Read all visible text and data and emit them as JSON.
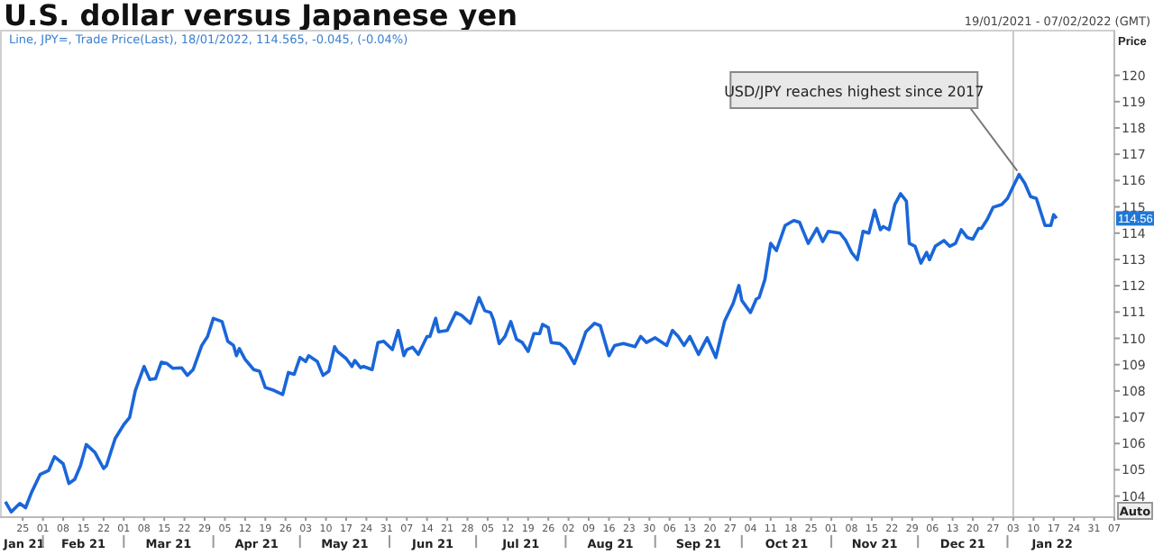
{
  "chart_data": {
    "type": "line",
    "title": "U.S. dollar versus Japanese yen",
    "subtitle": "Line, JPY=, Trade Price(Last), 18/01/2022, 114.565, -0.045, (-0.04%)",
    "ylabel": "Price",
    "xlim": [
      "2021-01-19",
      "2022-02-07"
    ],
    "ylim": [
      103.2,
      121.7
    ],
    "yticks": [
      104,
      105,
      106,
      107,
      108,
      109,
      110,
      111,
      112,
      113,
      114,
      115,
      116,
      117,
      118,
      119,
      120
    ],
    "xticks": [
      {
        "value": "2021-01-25",
        "label": "25"
      },
      {
        "value": "2021-02-01",
        "label": "01"
      },
      {
        "value": "2021-02-08",
        "label": "08"
      },
      {
        "value": "2021-02-15",
        "label": "15"
      },
      {
        "value": "2021-02-22",
        "label": "22"
      },
      {
        "value": "2021-03-01",
        "label": "01"
      },
      {
        "value": "2021-03-08",
        "label": "08"
      },
      {
        "value": "2021-03-15",
        "label": "15"
      },
      {
        "value": "2021-03-22",
        "label": "22"
      },
      {
        "value": "2021-03-29",
        "label": "29"
      },
      {
        "value": "2021-04-05",
        "label": "05"
      },
      {
        "value": "2021-04-12",
        "label": "12"
      },
      {
        "value": "2021-04-19",
        "label": "19"
      },
      {
        "value": "2021-04-26",
        "label": "26"
      },
      {
        "value": "2021-05-03",
        "label": "03"
      },
      {
        "value": "2021-05-10",
        "label": "10"
      },
      {
        "value": "2021-05-17",
        "label": "17"
      },
      {
        "value": "2021-05-24",
        "label": "24"
      },
      {
        "value": "2021-05-31",
        "label": "31"
      },
      {
        "value": "2021-06-07",
        "label": "07"
      },
      {
        "value": "2021-06-14",
        "label": "14"
      },
      {
        "value": "2021-06-21",
        "label": "21"
      },
      {
        "value": "2021-06-28",
        "label": "28"
      },
      {
        "value": "2021-07-05",
        "label": "05"
      },
      {
        "value": "2021-07-12",
        "label": "12"
      },
      {
        "value": "2021-07-19",
        "label": "19"
      },
      {
        "value": "2021-07-26",
        "label": "26"
      },
      {
        "value": "2021-08-02",
        "label": "02"
      },
      {
        "value": "2021-08-09",
        "label": "09"
      },
      {
        "value": "2021-08-16",
        "label": "16"
      },
      {
        "value": "2021-08-23",
        "label": "23"
      },
      {
        "value": "2021-08-30",
        "label": "30"
      },
      {
        "value": "2021-09-06",
        "label": "06"
      },
      {
        "value": "2021-09-13",
        "label": "13"
      },
      {
        "value": "2021-09-20",
        "label": "20"
      },
      {
        "value": "2021-09-27",
        "label": "27"
      },
      {
        "value": "2021-10-04",
        "label": "04"
      },
      {
        "value": "2021-10-11",
        "label": "11"
      },
      {
        "value": "2021-10-18",
        "label": "18"
      },
      {
        "value": "2021-10-25",
        "label": "25"
      },
      {
        "value": "2021-11-01",
        "label": "01"
      },
      {
        "value": "2021-11-08",
        "label": "08"
      },
      {
        "value": "2021-11-15",
        "label": "15"
      },
      {
        "value": "2021-11-22",
        "label": "22"
      },
      {
        "value": "2021-11-29",
        "label": "29"
      },
      {
        "value": "2021-12-06",
        "label": "06"
      },
      {
        "value": "2021-12-13",
        "label": "13"
      },
      {
        "value": "2021-12-20",
        "label": "20"
      },
      {
        "value": "2021-12-27",
        "label": "27"
      },
      {
        "value": "2022-01-03",
        "label": "03"
      },
      {
        "value": "2022-01-10",
        "label": "10"
      },
      {
        "value": "2022-01-17",
        "label": "17"
      },
      {
        "value": "2022-01-24",
        "label": "24"
      },
      {
        "value": "2022-01-31",
        "label": "31"
      },
      {
        "value": "2022-02-07",
        "label": "07"
      }
    ],
    "grid": false,
    "ref_lines": [
      {
        "axis": "x",
        "value": "2022-01-03",
        "color": "#c8c8c8"
      }
    ],
    "annotations": [
      "19/01/2021 - 07/02/2022 (GMT)",
      "Auto",
      {
        "text": "USD/JPY reaches highest since 2017",
        "x": "2022-01-05",
        "y": 116.23
      },
      "114.56",
      "Jan 21",
      "Feb 21",
      "Mar 21",
      "Apr 21",
      "May 21",
      "Jun 21",
      "Jul 21",
      "Aug 21",
      "Sep 21",
      "Oct 21",
      "Nov 21",
      "Dec 21",
      "Jan 22"
    ],
    "series": [
      {
        "color": "#1a66d9",
        "x": [
          "2021-01-19",
          "2021-01-21",
          "2021-01-24",
          "2021-01-26",
          "2021-01-28",
          "2021-01-31",
          "2021-02-03",
          "2021-02-05",
          "2021-02-08",
          "2021-02-10",
          "2021-02-12",
          "2021-02-14",
          "2021-02-16",
          "2021-02-19",
          "2021-02-22",
          "2021-02-23",
          "2021-02-26",
          "2021-03-01",
          "2021-03-03",
          "2021-03-05",
          "2021-03-08",
          "2021-03-10",
          "2021-03-12",
          "2021-03-14",
          "2021-03-16",
          "2021-03-18",
          "2021-03-21",
          "2021-03-23",
          "2021-03-25",
          "2021-03-28",
          "2021-03-30",
          "2021-04-01",
          "2021-04-04",
          "2021-04-06",
          "2021-04-08",
          "2021-04-09",
          "2021-04-10",
          "2021-04-12",
          "2021-04-15",
          "2021-04-17",
          "2021-04-19",
          "2021-04-22",
          "2021-04-25",
          "2021-04-27",
          "2021-04-29",
          "2021-05-01",
          "2021-05-03",
          "2021-05-04",
          "2021-05-07",
          "2021-05-09",
          "2021-05-11",
          "2021-05-13",
          "2021-05-14",
          "2021-05-17",
          "2021-05-19",
          "2021-05-20",
          "2021-05-22",
          "2021-05-23",
          "2021-05-26",
          "2021-05-28",
          "2021-05-30",
          "2021-06-02",
          "2021-06-04",
          "2021-06-06",
          "2021-06-07",
          "2021-06-09",
          "2021-06-11",
          "2021-06-14",
          "2021-06-15",
          "2021-06-17",
          "2021-06-18",
          "2021-06-21",
          "2021-06-24",
          "2021-06-26",
          "2021-06-29",
          "2021-07-02",
          "2021-07-04",
          "2021-07-06",
          "2021-07-07",
          "2021-07-09",
          "2021-07-11",
          "2021-07-13",
          "2021-07-15",
          "2021-07-17",
          "2021-07-19",
          "2021-07-21",
          "2021-07-23",
          "2021-07-24",
          "2021-07-26",
          "2021-07-27",
          "2021-07-30",
          "2021-08-01",
          "2021-08-04",
          "2021-08-06",
          "2021-08-08",
          "2021-08-11",
          "2021-08-13",
          "2021-08-16",
          "2021-08-18",
          "2021-08-21",
          "2021-08-25",
          "2021-08-27",
          "2021-08-29",
          "2021-09-01",
          "2021-09-05",
          "2021-09-07",
          "2021-09-09",
          "2021-09-11",
          "2021-09-13",
          "2021-09-16",
          "2021-09-19",
          "2021-09-22",
          "2021-09-25",
          "2021-09-28",
          "2021-09-30",
          "2021-10-01",
          "2021-10-04",
          "2021-10-06",
          "2021-10-07",
          "2021-10-09",
          "2021-10-11",
          "2021-10-13",
          "2021-10-16",
          "2021-10-19",
          "2021-10-21",
          "2021-10-24",
          "2021-10-27",
          "2021-10-29",
          "2021-10-31",
          "2021-11-04",
          "2021-11-06",
          "2021-11-08",
          "2021-11-10",
          "2021-11-12",
          "2021-11-14",
          "2021-11-16",
          "2021-11-18",
          "2021-11-19",
          "2021-11-21",
          "2021-11-23",
          "2021-11-25",
          "2021-11-27",
          "2021-11-28",
          "2021-11-30",
          "2021-12-02",
          "2021-12-04",
          "2021-12-05",
          "2021-12-07",
          "2021-12-10",
          "2021-12-12",
          "2021-12-14",
          "2021-12-16",
          "2021-12-18",
          "2021-12-20",
          "2021-12-22",
          "2021-12-23",
          "2021-12-25",
          "2021-12-27",
          "2021-12-30",
          "2022-01-01",
          "2022-01-03",
          "2022-01-05",
          "2022-01-07",
          "2022-01-09",
          "2022-01-11",
          "2022-01-14",
          "2022-01-16",
          "2022-01-17",
          "2022-01-18"
        ],
        "values": [
          103.79,
          103.4,
          103.72,
          103.56,
          104.13,
          104.82,
          104.98,
          105.5,
          105.23,
          104.48,
          104.64,
          105.16,
          105.96,
          105.66,
          105.05,
          105.16,
          106.19,
          106.72,
          106.99,
          108.02,
          108.93,
          108.43,
          108.47,
          109.09,
          109.04,
          108.86,
          108.88,
          108.59,
          108.81,
          109.73,
          110.07,
          110.76,
          110.64,
          109.89,
          109.73,
          109.34,
          109.61,
          109.2,
          108.81,
          108.75,
          108.13,
          108.02,
          107.86,
          108.7,
          108.63,
          109.27,
          109.12,
          109.34,
          109.12,
          108.59,
          108.75,
          109.68,
          109.5,
          109.23,
          108.93,
          109.16,
          108.88,
          108.93,
          108.81,
          109.84,
          109.89,
          109.57,
          110.3,
          109.34,
          109.57,
          109.66,
          109.39,
          110.07,
          110.07,
          110.76,
          110.25,
          110.3,
          110.98,
          110.87,
          110.57,
          111.55,
          111.05,
          110.98,
          110.71,
          109.8,
          110.07,
          110.64,
          109.96,
          109.84,
          109.5,
          110.18,
          110.18,
          110.53,
          110.41,
          109.84,
          109.8,
          109.61,
          109.04,
          109.61,
          110.25,
          110.57,
          110.48,
          109.34,
          109.73,
          109.8,
          109.68,
          110.07,
          109.84,
          110.02,
          109.73,
          110.3,
          110.07,
          109.73,
          110.07,
          109.39,
          110.02,
          109.27,
          110.64,
          111.33,
          112.01,
          111.44,
          110.98,
          111.49,
          111.55,
          112.24,
          113.61,
          113.34,
          114.29,
          114.48,
          114.41,
          113.61,
          114.18,
          113.68,
          114.07,
          114.0,
          113.72,
          113.27,
          112.99,
          114.07,
          114.0,
          114.87,
          114.13,
          114.25,
          114.13,
          115.09,
          115.5,
          115.21,
          113.61,
          113.5,
          112.86,
          113.27,
          112.99,
          113.5,
          113.72,
          113.5,
          113.61,
          114.13,
          113.84,
          113.77,
          114.18,
          114.18,
          114.52,
          114.98,
          115.09,
          115.32,
          115.78,
          116.23,
          115.89,
          115.39,
          115.32,
          114.29,
          114.29,
          114.7,
          114.56
        ]
      }
    ]
  }
}
